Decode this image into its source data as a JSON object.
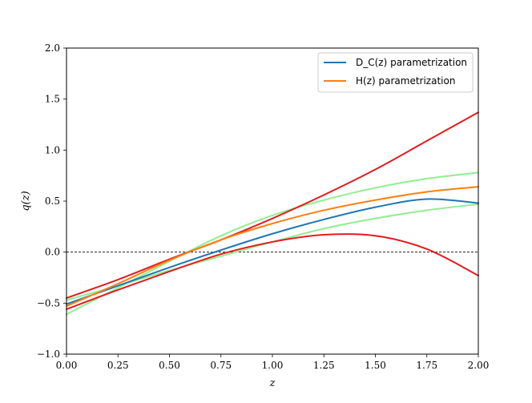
{
  "chart_data": {
    "type": "line",
    "xlabel": "z",
    "ylabel": "q(z)",
    "xlim": [
      0.0,
      2.0
    ],
    "ylim": [
      -1.0,
      2.0
    ],
    "xticks": [
      "0.00",
      "0.25",
      "0.50",
      "0.75",
      "1.00",
      "1.25",
      "1.50",
      "1.75",
      "2.00"
    ],
    "yticks": [
      "−1.0",
      "−0.5",
      "0.0",
      "0.5",
      "1.0",
      "1.5",
      "2.0"
    ],
    "legend": {
      "placement": "top-right"
    },
    "reference_line": {
      "y": 0.0,
      "style": "dashed",
      "color": "#000000"
    },
    "series": [
      {
        "name": "D_C(z) parametrization",
        "legend_label": "D_C(z) parametrization",
        "color": "#1f77b4",
        "in_legend": true,
        "x": [
          0.0,
          0.25,
          0.5,
          0.75,
          1.0,
          1.25,
          1.5,
          1.75,
          2.0
        ],
        "y": [
          -0.51,
          -0.33,
          -0.15,
          0.02,
          0.18,
          0.32,
          0.44,
          0.52,
          0.48
        ]
      },
      {
        "name": "H(z) parametrization",
        "legend_label": "H(z) parametrization",
        "color": "#ff7f0e",
        "in_legend": true,
        "x": [
          0.0,
          0.25,
          0.5,
          0.75,
          1.0,
          1.25,
          1.5,
          1.75,
          2.0
        ],
        "y": [
          -0.53,
          -0.31,
          -0.08,
          0.12,
          0.28,
          0.41,
          0.51,
          0.59,
          0.64
        ]
      },
      {
        "color": "#e41a1c",
        "in_legend": false,
        "x": [
          0.0,
          0.25,
          0.5,
          0.75,
          1.0,
          1.25,
          1.5,
          1.75,
          2.0
        ],
        "y": [
          -0.45,
          -0.27,
          -0.07,
          0.12,
          0.33,
          0.56,
          0.81,
          1.09,
          1.37
        ]
      },
      {
        "color": "#e41a1c",
        "in_legend": false,
        "x": [
          0.0,
          0.25,
          0.5,
          0.75,
          1.0,
          1.25,
          1.5,
          1.75,
          2.0
        ],
        "y": [
          -0.56,
          -0.37,
          -0.19,
          -0.02,
          0.1,
          0.17,
          0.16,
          0.03,
          -0.23
        ]
      },
      {
        "color": "#90ee90",
        "in_legend": false,
        "x": [
          0.0,
          0.25,
          0.5,
          0.75,
          1.0,
          1.25,
          1.5,
          1.75,
          2.0
        ],
        "y": [
          -0.61,
          -0.35,
          -0.09,
          0.16,
          0.36,
          0.51,
          0.63,
          0.72,
          0.78
        ]
      },
      {
        "color": "#90ee90",
        "in_legend": false,
        "x": [
          0.0,
          0.25,
          0.5,
          0.75,
          1.0,
          1.25,
          1.5,
          1.75,
          2.0
        ],
        "y": [
          -0.47,
          -0.33,
          -0.18,
          -0.04,
          0.1,
          0.23,
          0.33,
          0.41,
          0.47
        ]
      }
    ]
  }
}
